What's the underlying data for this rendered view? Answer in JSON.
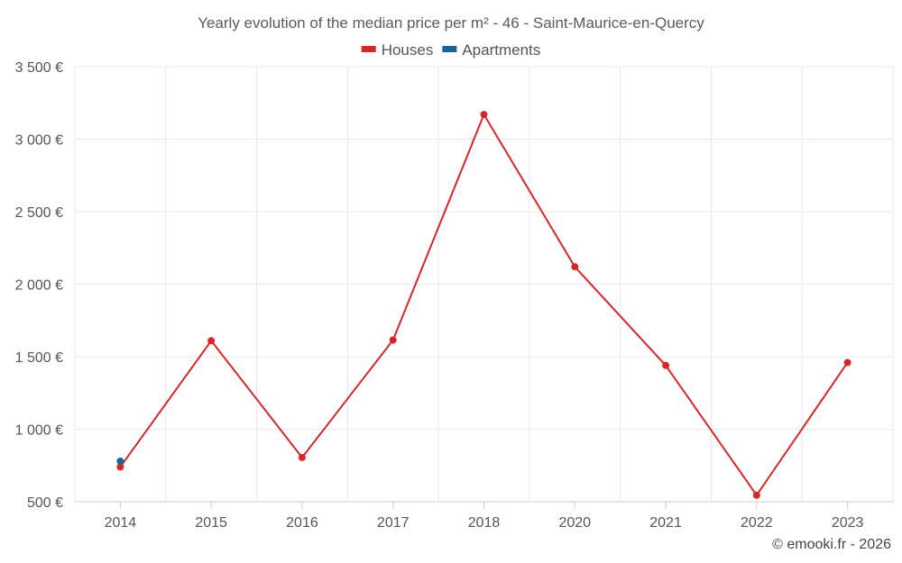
{
  "chart_data": {
    "type": "line",
    "title": "Yearly evolution of the median price per m² - 46 - Saint-Maurice-en-Quercy",
    "categories": [
      "2014",
      "2015",
      "2016",
      "2017",
      "2018",
      "2020",
      "2021",
      "2022",
      "2023"
    ],
    "series": [
      {
        "name": "Houses",
        "color": "#d62728",
        "values": [
          740,
          1610,
          805,
          1615,
          3170,
          2120,
          1440,
          545,
          1460
        ]
      },
      {
        "name": "Apartments",
        "color": "#1a6496",
        "values": [
          780,
          null,
          null,
          null,
          null,
          null,
          null,
          null,
          null
        ]
      }
    ],
    "ylim": [
      500,
      3500
    ],
    "yticks": [
      500,
      1000,
      1500,
      2000,
      2500,
      3000,
      3500
    ],
    "ytick_labels": [
      "500 €",
      "1 000 €",
      "1 500 €",
      "2 000 €",
      "2 500 €",
      "3 000 €",
      "3 500 €"
    ],
    "grid": true,
    "legend_position": "top-center"
  },
  "credit": "© emooki.fr - 2026"
}
